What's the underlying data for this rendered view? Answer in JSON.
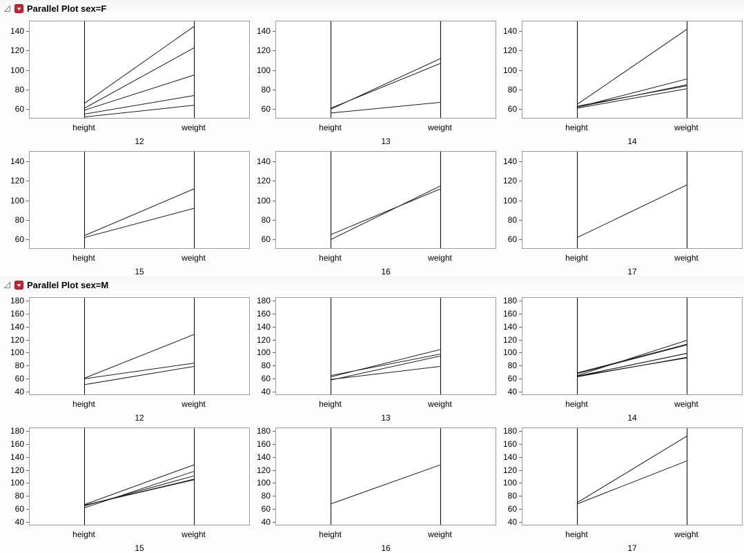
{
  "icons": {
    "disclosure": "open-disclosure-triangle",
    "menu": "red-triangle-menu"
  },
  "colors": {
    "accent_red": "#cf2030",
    "accent_red_border": "#9d1620",
    "data_line": "#1a1a1a",
    "axis_line": "#000000",
    "panel_border": "#9a9a9a"
  },
  "chart_data": [
    {
      "type": "line",
      "chart_variant": "parallel-coordinates",
      "title": "Parallel Plot sex=F",
      "axis_labels": [
        "height",
        "weight"
      ],
      "group_label_by": "age",
      "y_ticks": [
        60,
        80,
        100,
        120,
        140
      ],
      "ylim": [
        51,
        150
      ],
      "legend": "none",
      "panels": [
        {
          "label": "12",
          "lines": [
            [
              59,
              95
            ],
            [
              61,
              123
            ],
            [
              55,
              74
            ],
            [
              66,
              145
            ],
            [
              52,
              64
            ]
          ]
        },
        {
          "label": "13",
          "lines": [
            [
              60,
              112
            ],
            [
              61,
              107
            ],
            [
              56,
              67
            ]
          ]
        },
        {
          "label": "14",
          "lines": [
            [
              61,
              81
            ],
            [
              62,
              91
            ],
            [
              65,
              142
            ],
            [
              63,
              84
            ],
            [
              62,
              85
            ]
          ]
        },
        {
          "label": "15",
          "lines": [
            [
              62,
              92
            ],
            [
              64,
              112
            ]
          ]
        },
        {
          "label": "16",
          "lines": [
            [
              65,
              112
            ],
            [
              60,
              115
            ]
          ]
        },
        {
          "label": "17",
          "lines": [
            [
              62,
              116
            ]
          ]
        }
      ]
    },
    {
      "type": "line",
      "chart_variant": "parallel-coordinates",
      "title": "Parallel Plot sex=M",
      "axis_labels": [
        "height",
        "weight"
      ],
      "group_label_by": "age",
      "y_ticks": [
        40,
        60,
        80,
        100,
        120,
        140,
        160,
        180
      ],
      "ylim": [
        36,
        184
      ],
      "legend": "none",
      "panels": [
        {
          "label": "12",
          "lines": [
            [
              60,
              84
            ],
            [
              61,
              128
            ],
            [
              51,
              79
            ]
          ]
        },
        {
          "label": "13",
          "lines": [
            [
              65,
              98
            ],
            [
              63,
              105
            ],
            [
              58,
              95
            ],
            [
              59,
              79
            ]
          ]
        },
        {
          "label": "14",
          "lines": [
            [
              63,
              93
            ],
            [
              64,
              99
            ],
            [
              65,
              119
            ],
            [
              64,
              92
            ],
            [
              68,
              112
            ],
            [
              64,
              99
            ],
            [
              69,
              113
            ]
          ]
        },
        {
          "label": "15",
          "lines": [
            [
              67,
              128
            ],
            [
              65,
              111
            ],
            [
              66,
              105
            ],
            [
              62,
              118
            ],
            [
              66,
              106
            ]
          ]
        },
        {
          "label": "16",
          "lines": [
            [
              68,
              128
            ]
          ]
        },
        {
          "label": "17",
          "lines": [
            [
              68,
              134
            ],
            [
              70,
              172
            ]
          ]
        }
      ]
    }
  ]
}
